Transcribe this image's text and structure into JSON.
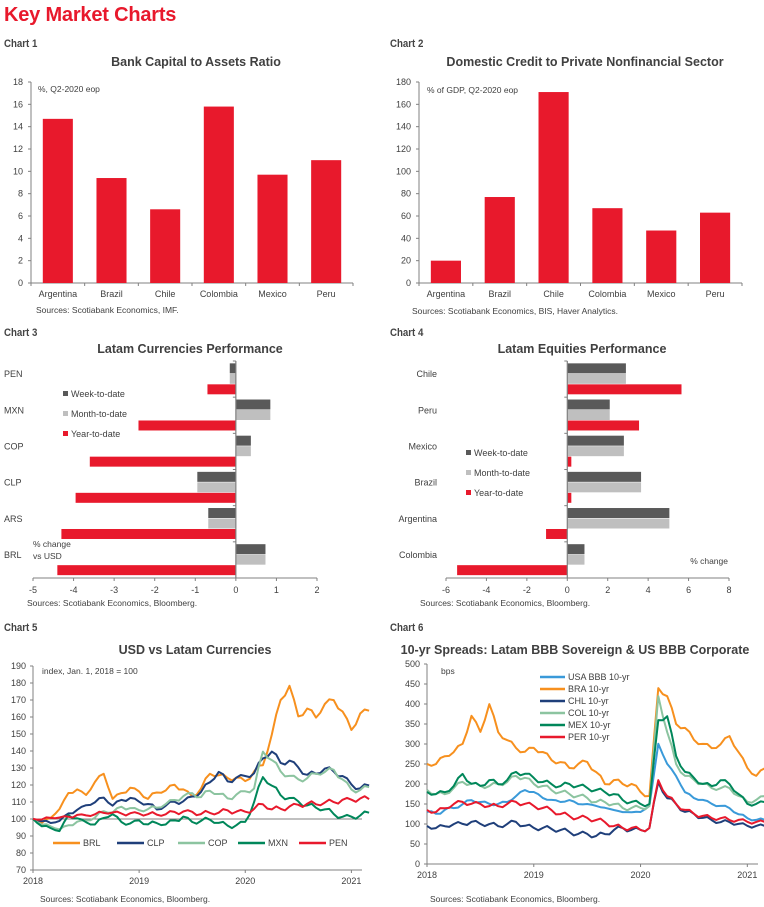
{
  "page": {
    "title": "Key Market Charts"
  },
  "colors": {
    "brand_red": "#e8192c",
    "week_gray": "#595959",
    "month_gray": "#bfbfbf",
    "axis": "#808080"
  },
  "chart_data": [
    {
      "id": "chart1",
      "label": "Chart 1",
      "type": "bar",
      "title": "Bank Capital to Assets Ratio",
      "note": "%, Q2-2020 eop",
      "categories": [
        "Argentina",
        "Brazil",
        "Chile",
        "Colombia",
        "Mexico",
        "Peru"
      ],
      "values": [
        14.7,
        9.4,
        6.6,
        15.8,
        9.7,
        11.0
      ],
      "ylim": [
        0,
        18
      ],
      "yticks": [
        0,
        2,
        4,
        6,
        8,
        10,
        12,
        14,
        16,
        18
      ],
      "xlabel": "",
      "ylabel": "",
      "grid": false,
      "color": "#e8192c",
      "source": "Sources: Scotiabank Economics, IMF."
    },
    {
      "id": "chart2",
      "label": "Chart 2",
      "type": "bar",
      "title": "Domestic Credit to Private Nonfinancial Sector",
      "note": "% of GDP, Q2-2020 eop",
      "categories": [
        "Argentina",
        "Brazil",
        "Chile",
        "Colombia",
        "Mexico",
        "Peru"
      ],
      "values": [
        20,
        77,
        171,
        67,
        47,
        63
      ],
      "ylim": [
        0,
        180
      ],
      "yticks": [
        0,
        20,
        40,
        60,
        80,
        100,
        120,
        140,
        160,
        180
      ],
      "xlabel": "",
      "ylabel": "",
      "grid": false,
      "color": "#e8192c",
      "source": "Sources: Scotiabank Economics, BIS, Haver Analytics."
    },
    {
      "id": "chart3",
      "label": "Chart 3",
      "type": "bar",
      "orientation": "horizontal",
      "title": "Latam Currencies Performance",
      "note": "% change vs USD",
      "note_lines": [
        "% change",
        "vs USD"
      ],
      "categories": [
        "PEN",
        "MXN",
        "COP",
        "CLP",
        "ARS",
        "BRL"
      ],
      "series": [
        {
          "name": "Week-to-date",
          "color": "#595959",
          "values": [
            -0.15,
            0.85,
            0.37,
            -0.95,
            -0.68,
            0.73
          ]
        },
        {
          "name": "Month-to-date",
          "color": "#bfbfbf",
          "values": [
            -0.15,
            0.85,
            0.37,
            -0.95,
            -0.68,
            0.73
          ]
        },
        {
          "name": "Year-to-date",
          "color": "#e8192c",
          "values": [
            -0.7,
            -2.4,
            -3.6,
            -3.95,
            -4.3,
            -4.4
          ]
        }
      ],
      "xlim": [
        -5,
        2
      ],
      "xticks": [
        -5,
        -4,
        -3,
        -2,
        -1,
        0,
        1,
        2
      ],
      "legend": "left-top",
      "grid": false,
      "source": "Sources: Scotiabank Economics, Bloomberg."
    },
    {
      "id": "chart4",
      "label": "Chart 4",
      "type": "bar",
      "orientation": "horizontal",
      "title": "Latam Equities Performance",
      "note": "% change",
      "categories": [
        "Chile",
        "Peru",
        "Mexico",
        "Brazil",
        "Argentina",
        "Colombia"
      ],
      "series": [
        {
          "name": "Week-to-date",
          "color": "#595959",
          "values": [
            2.9,
            2.1,
            2.8,
            3.65,
            5.05,
            0.85
          ]
        },
        {
          "name": "Month-to-date",
          "color": "#bfbfbf",
          "values": [
            2.9,
            2.1,
            2.8,
            3.65,
            5.05,
            0.85
          ]
        },
        {
          "name": "Year-to-date",
          "color": "#e8192c",
          "values": [
            5.65,
            3.55,
            0.2,
            0.2,
            -1.05,
            -5.45
          ]
        }
      ],
      "xlim": [
        -6,
        8
      ],
      "xticks": [
        -6,
        -4,
        -2,
        0,
        2,
        4,
        6,
        8
      ],
      "legend": "left-middle",
      "grid": false,
      "source": "Sources: Scotiabank Economics, Bloomberg."
    },
    {
      "id": "chart5",
      "label": "Chart 5",
      "type": "line",
      "title": "USD vs Latam Currencies",
      "note": "index, Jan. 1, 2018 = 100",
      "x_start": 2018.0,
      "x_step_years": 0.08333,
      "xlim": [
        2018,
        2021.1
      ],
      "xticks": [
        2018,
        2019,
        2020,
        2021
      ],
      "ylim": [
        70,
        190
      ],
      "yticks": [
        70,
        80,
        90,
        100,
        110,
        120,
        130,
        140,
        150,
        160,
        170,
        180,
        190
      ],
      "reference_line": 100,
      "legend": "bottom",
      "series": [
        {
          "name": "BRL",
          "color": "#f7901e",
          "values": [
            100,
            98,
            101,
            106,
            115,
            117,
            114,
            122,
            127,
            112,
            115,
            118,
            116,
            112,
            116,
            117,
            120,
            117,
            113,
            118,
            127,
            126,
            124,
            124,
            122,
            128,
            132,
            150,
            170,
            178,
            160,
            165,
            160,
            168,
            170,
            163,
            152,
            162,
            164
          ]
        },
        {
          "name": "CLP",
          "color": "#1f3f7a",
          "values": [
            100,
            99,
            98,
            99,
            103,
            105,
            108,
            110,
            113,
            108,
            111,
            112,
            110,
            109,
            106,
            108,
            110,
            110,
            113,
            116,
            122,
            128,
            122,
            124,
            125,
            127,
            136,
            140,
            133,
            134,
            130,
            126,
            127,
            130,
            128,
            125,
            120,
            118,
            120
          ]
        },
        {
          "name": "COP",
          "color": "#8cc4a0",
          "values": [
            100,
            97,
            96,
            94,
            96,
            98,
            99,
            101,
            105,
            104,
            107,
            106,
            105,
            106,
            107,
            109,
            111,
            113,
            115,
            113,
            117,
            115,
            112,
            114,
            116,
            118,
            140,
            135,
            128,
            125,
            123,
            124,
            127,
            128,
            129,
            123,
            117,
            117,
            119
          ]
        },
        {
          "name": "MXN",
          "color": "#00875a",
          "values": [
            100,
            96,
            95,
            93,
            102,
            100,
            98,
            97,
            101,
            103,
            98,
            97,
            99,
            97,
            98,
            97,
            99,
            101,
            98,
            99,
            100,
            98,
            96,
            96,
            98,
            110,
            125,
            120,
            114,
            112,
            110,
            108,
            107,
            106,
            103,
            101,
            101,
            102,
            104
          ]
        },
        {
          "name": "PEN",
          "color": "#e8192c",
          "values": [
            100,
            100,
            101,
            101,
            101,
            102,
            102,
            103,
            104,
            104,
            103,
            103,
            103,
            103,
            103,
            103,
            104,
            104,
            104,
            103,
            104,
            104,
            105,
            104,
            104,
            106,
            109,
            106,
            106,
            107,
            108,
            109,
            109,
            110,
            110,
            111,
            111,
            112,
            112
          ]
        }
      ],
      "source": "Sources: Scotiabank Economics, Bloomberg."
    },
    {
      "id": "chart6",
      "label": "Chart 6",
      "type": "line",
      "title": "10-yr Spreads: Latam BBB Sovereign & US BBB Corporate",
      "note": "bps",
      "x_start": 2018.0,
      "x_step_years": 0.08333,
      "xlim": [
        2018,
        2021.1
      ],
      "xticks": [
        2018,
        2019,
        2020,
        2021
      ],
      "ylim": [
        0,
        500
      ],
      "yticks": [
        0,
        50,
        100,
        150,
        200,
        250,
        300,
        350,
        400,
        450,
        500
      ],
      "legend": "top-center",
      "series": [
        {
          "name": "USA BBB 10-yr",
          "color": "#3a9ad9",
          "values": [
            130,
            125,
            135,
            140,
            150,
            160,
            155,
            150,
            150,
            155,
            170,
            185,
            180,
            165,
            160,
            155,
            160,
            150,
            150,
            145,
            140,
            135,
            130,
            130,
            130,
            145,
            300,
            250,
            220,
            180,
            165,
            160,
            150,
            145,
            140,
            125,
            115,
            110,
            110
          ]
        },
        {
          "name": "BRA 10-yr",
          "color": "#f7901e",
          "values": [
            250,
            250,
            270,
            280,
            300,
            370,
            330,
            400,
            330,
            310,
            290,
            280,
            290,
            280,
            260,
            255,
            240,
            250,
            255,
            230,
            200,
            210,
            200,
            200,
            180,
            170,
            440,
            420,
            350,
            340,
            310,
            300,
            290,
            300,
            320,
            280,
            240,
            220,
            240
          ]
        },
        {
          "name": "CHL 10-yr",
          "color": "#1f3f7a",
          "values": [
            95,
            90,
            95,
            100,
            100,
            105,
            100,
            100,
            95,
            100,
            105,
            95,
            90,
            90,
            88,
            85,
            80,
            75,
            75,
            70,
            75,
            85,
            90,
            85,
            85,
            90,
            205,
            165,
            150,
            130,
            125,
            115,
            110,
            105,
            105,
            100,
            95,
            95,
            95
          ]
        },
        {
          "name": "COL 10-yr",
          "color": "#8cc4a0",
          "values": [
            185,
            175,
            175,
            190,
            205,
            200,
            195,
            195,
            200,
            205,
            220,
            215,
            200,
            195,
            185,
            180,
            175,
            170,
            165,
            155,
            155,
            150,
            140,
            140,
            140,
            145,
            420,
            330,
            250,
            220,
            210,
            200,
            190,
            190,
            190,
            170,
            155,
            160,
            170
          ]
        },
        {
          "name": "MEX 10-yr",
          "color": "#00875a",
          "values": [
            180,
            175,
            180,
            195,
            225,
            200,
            195,
            210,
            200,
            210,
            230,
            225,
            215,
            205,
            200,
            195,
            200,
            195,
            190,
            185,
            180,
            175,
            160,
            155,
            150,
            150,
            360,
            370,
            270,
            230,
            215,
            200,
            195,
            210,
            200,
            175,
            150,
            150,
            155
          ]
        },
        {
          "name": "PER 10-yr",
          "color": "#e8192c",
          "values": [
            135,
            130,
            140,
            150,
            155,
            150,
            150,
            145,
            145,
            150,
            155,
            150,
            145,
            140,
            135,
            125,
            120,
            115,
            115,
            110,
            105,
            95,
            90,
            90,
            85,
            90,
            210,
            170,
            150,
            135,
            125,
            120,
            115,
            115,
            110,
            110,
            105,
            105,
            105
          ]
        }
      ],
      "source": "Sources: Scotiabank Economics, Bloomberg."
    }
  ]
}
